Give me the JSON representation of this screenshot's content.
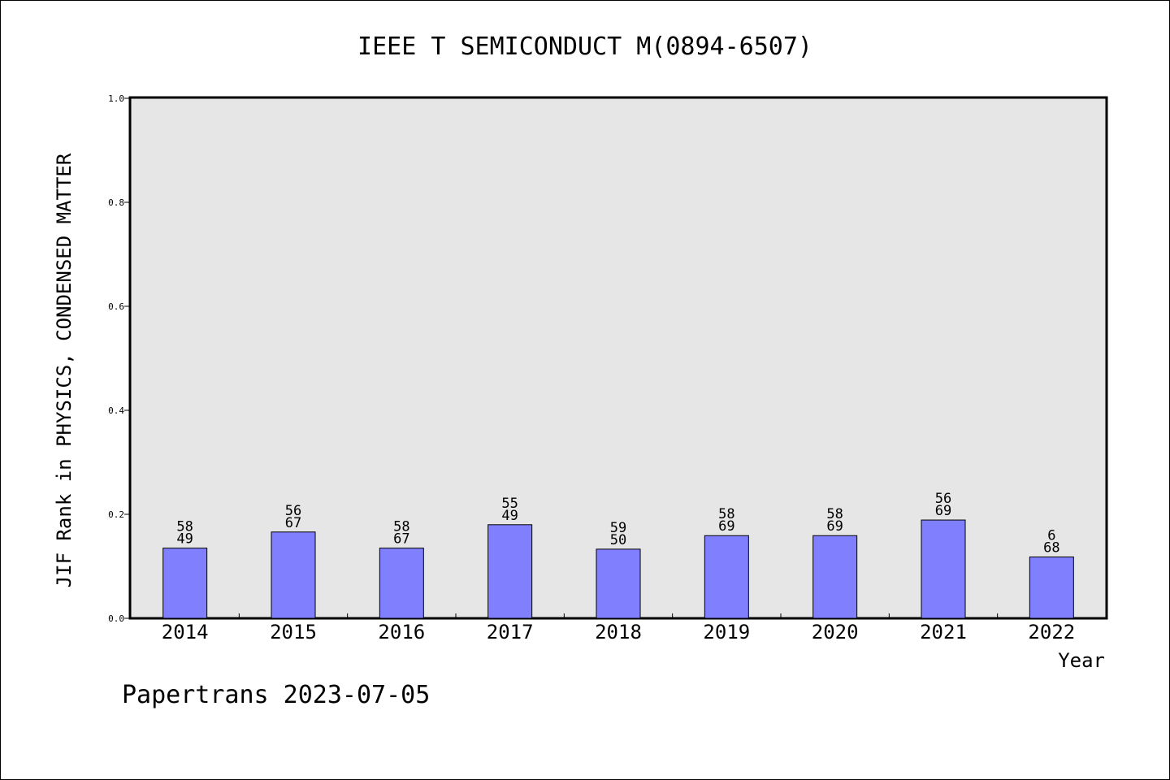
{
  "chart_data": {
    "type": "bar",
    "title": "IEEE T SEMICONDUCT M(0894-6507)",
    "xlabel": "Year",
    "ylabel": "JIF Rank in PHYSICS, CONDENSED MATTER",
    "ylim": [
      0,
      1.0
    ],
    "yticks": [
      "0.0",
      "0.2",
      "0.4",
      "0.6",
      "0.8",
      "1.0"
    ],
    "categories": [
      "2014",
      "2015",
      "2016",
      "2017",
      "2018",
      "2019",
      "2020",
      "2021",
      "2022"
    ],
    "values": [
      0.135,
      0.166,
      0.135,
      0.18,
      0.133,
      0.159,
      0.159,
      0.189,
      0.118
    ],
    "rank_labels": [
      "58",
      "56",
      "58",
      "55",
      "59",
      "58",
      "58",
      "56",
      "6"
    ],
    "total_labels": [
      "49",
      "67",
      "67",
      "49",
      "50",
      "69",
      "69",
      "69",
      "68"
    ],
    "bar_color": "#8080ff",
    "plot_background": "#e6e6e6",
    "grid": false,
    "legend": "none"
  },
  "footer": {
    "credit": "Papertrans 2023-07-05"
  }
}
